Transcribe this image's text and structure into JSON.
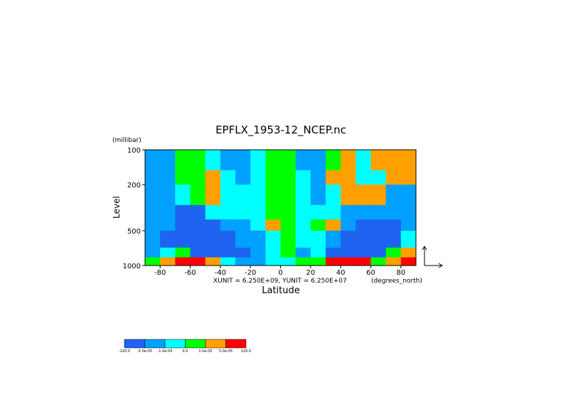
{
  "chart_data": {
    "type": "contour",
    "title": "EPFLX_1953-12_NCEP.nc",
    "y_unit_label": "(millibar)",
    "y_label": "Level",
    "x_label": "Latitude",
    "x_unit_label": "(degrees_north)",
    "vector_note": "XUNIT = 6.250E+09, YUNIT = 6.250E+07",
    "xlim": [
      -90,
      90
    ],
    "xticks": [
      -80,
      -60,
      -40,
      -20,
      0,
      20,
      40,
      60,
      80
    ],
    "ylim": [
      1000,
      100
    ],
    "yticks": [
      100,
      200,
      500,
      1000
    ],
    "y_log": true,
    "x_edges": [
      -90,
      -80,
      -70,
      -60,
      -50,
      -40,
      -30,
      -20,
      -10,
      0,
      10,
      20,
      30,
      40,
      50,
      60,
      70,
      80,
      90
    ],
    "y_edges": [
      100,
      150,
      200,
      300,
      400,
      500,
      700,
      850,
      1000
    ],
    "z": [
      [
        -3e-05,
        -3e-05,
        5e-06,
        5e-06,
        -5e-06,
        -3e-05,
        -3e-05,
        -5e-06,
        5e-06,
        5e-06,
        -3e-05,
        -3e-05,
        5e-06,
        3e-05,
        -5e-06,
        3e-05,
        3e-05,
        3e-05
      ],
      [
        -3e-05,
        -3e-05,
        5e-06,
        5e-06,
        3e-05,
        -5e-06,
        -3e-05,
        -5e-06,
        5e-06,
        5e-06,
        -5e-06,
        -3e-05,
        3e-05,
        3e-05,
        -5e-06,
        -5e-06,
        3e-05,
        3e-05
      ],
      [
        -3e-05,
        -3e-05,
        -5e-06,
        5e-06,
        3e-05,
        -5e-06,
        -5e-06,
        -5e-06,
        5e-06,
        5e-06,
        -5e-06,
        -3e-05,
        -5e-06,
        3e-05,
        3e-05,
        3e-05,
        -3e-05,
        -3e-05
      ],
      [
        -3e-05,
        -3e-05,
        -0.0001,
        -0.0001,
        -5e-06,
        -5e-06,
        -5e-06,
        -5e-06,
        5e-06,
        5e-06,
        -5e-06,
        -5e-06,
        -5e-06,
        -3e-05,
        -3e-05,
        -3e-05,
        -3e-05,
        -3e-05
      ],
      [
        -3e-05,
        -3e-05,
        -0.0001,
        -0.0001,
        -0.0001,
        -3e-05,
        -3e-05,
        -5e-06,
        3e-05,
        5e-06,
        -5e-06,
        5e-06,
        3e-05,
        -3e-05,
        -0.0001,
        -0.0001,
        -0.0001,
        -3e-05
      ],
      [
        -3e-05,
        -0.0001,
        -0.0001,
        -0.0001,
        -0.0001,
        -0.0001,
        -3e-05,
        -3e-05,
        -5e-06,
        5e-06,
        -5e-06,
        -5e-06,
        -3e-05,
        -0.0001,
        -0.0001,
        -0.0001,
        -0.0001,
        -5e-06
      ],
      [
        -3e-05,
        -5e-06,
        5e-06,
        -0.0001,
        -0.0001,
        -0.0001,
        -0.0001,
        -3e-05,
        -5e-06,
        5e-06,
        -3e-05,
        -5e-06,
        -0.0001,
        -0.0001,
        -0.0001,
        -0.0001,
        5e-06,
        3e-05
      ],
      [
        5e-06,
        3e-05,
        0.0001,
        0.0001,
        3e-05,
        -5e-06,
        -3e-05,
        -3e-05,
        -5e-06,
        -5e-06,
        5e-06,
        5e-06,
        0.0001,
        0.0001,
        0.0001,
        5e-06,
        3e-05,
        0.0001
      ]
    ],
    "levels": [
      {
        "value": -120,
        "label": "-120.0"
      },
      {
        "value": -5e-05,
        "label": "-5.0e-05"
      },
      {
        "value": -1e-05,
        "label": "-1.0e-05"
      },
      {
        "value": 0,
        "label": "0.0"
      },
      {
        "value": 1e-05,
        "label": "1.0e-05"
      },
      {
        "value": 5e-05,
        "label": "5.0e-05"
      },
      {
        "value": 120,
        "label": "120.0"
      }
    ],
    "colors": [
      "#1e64f0",
      "#00a0ff",
      "#00ffff",
      "#00ff00",
      "#ffa000",
      "#ff0000"
    ]
  }
}
